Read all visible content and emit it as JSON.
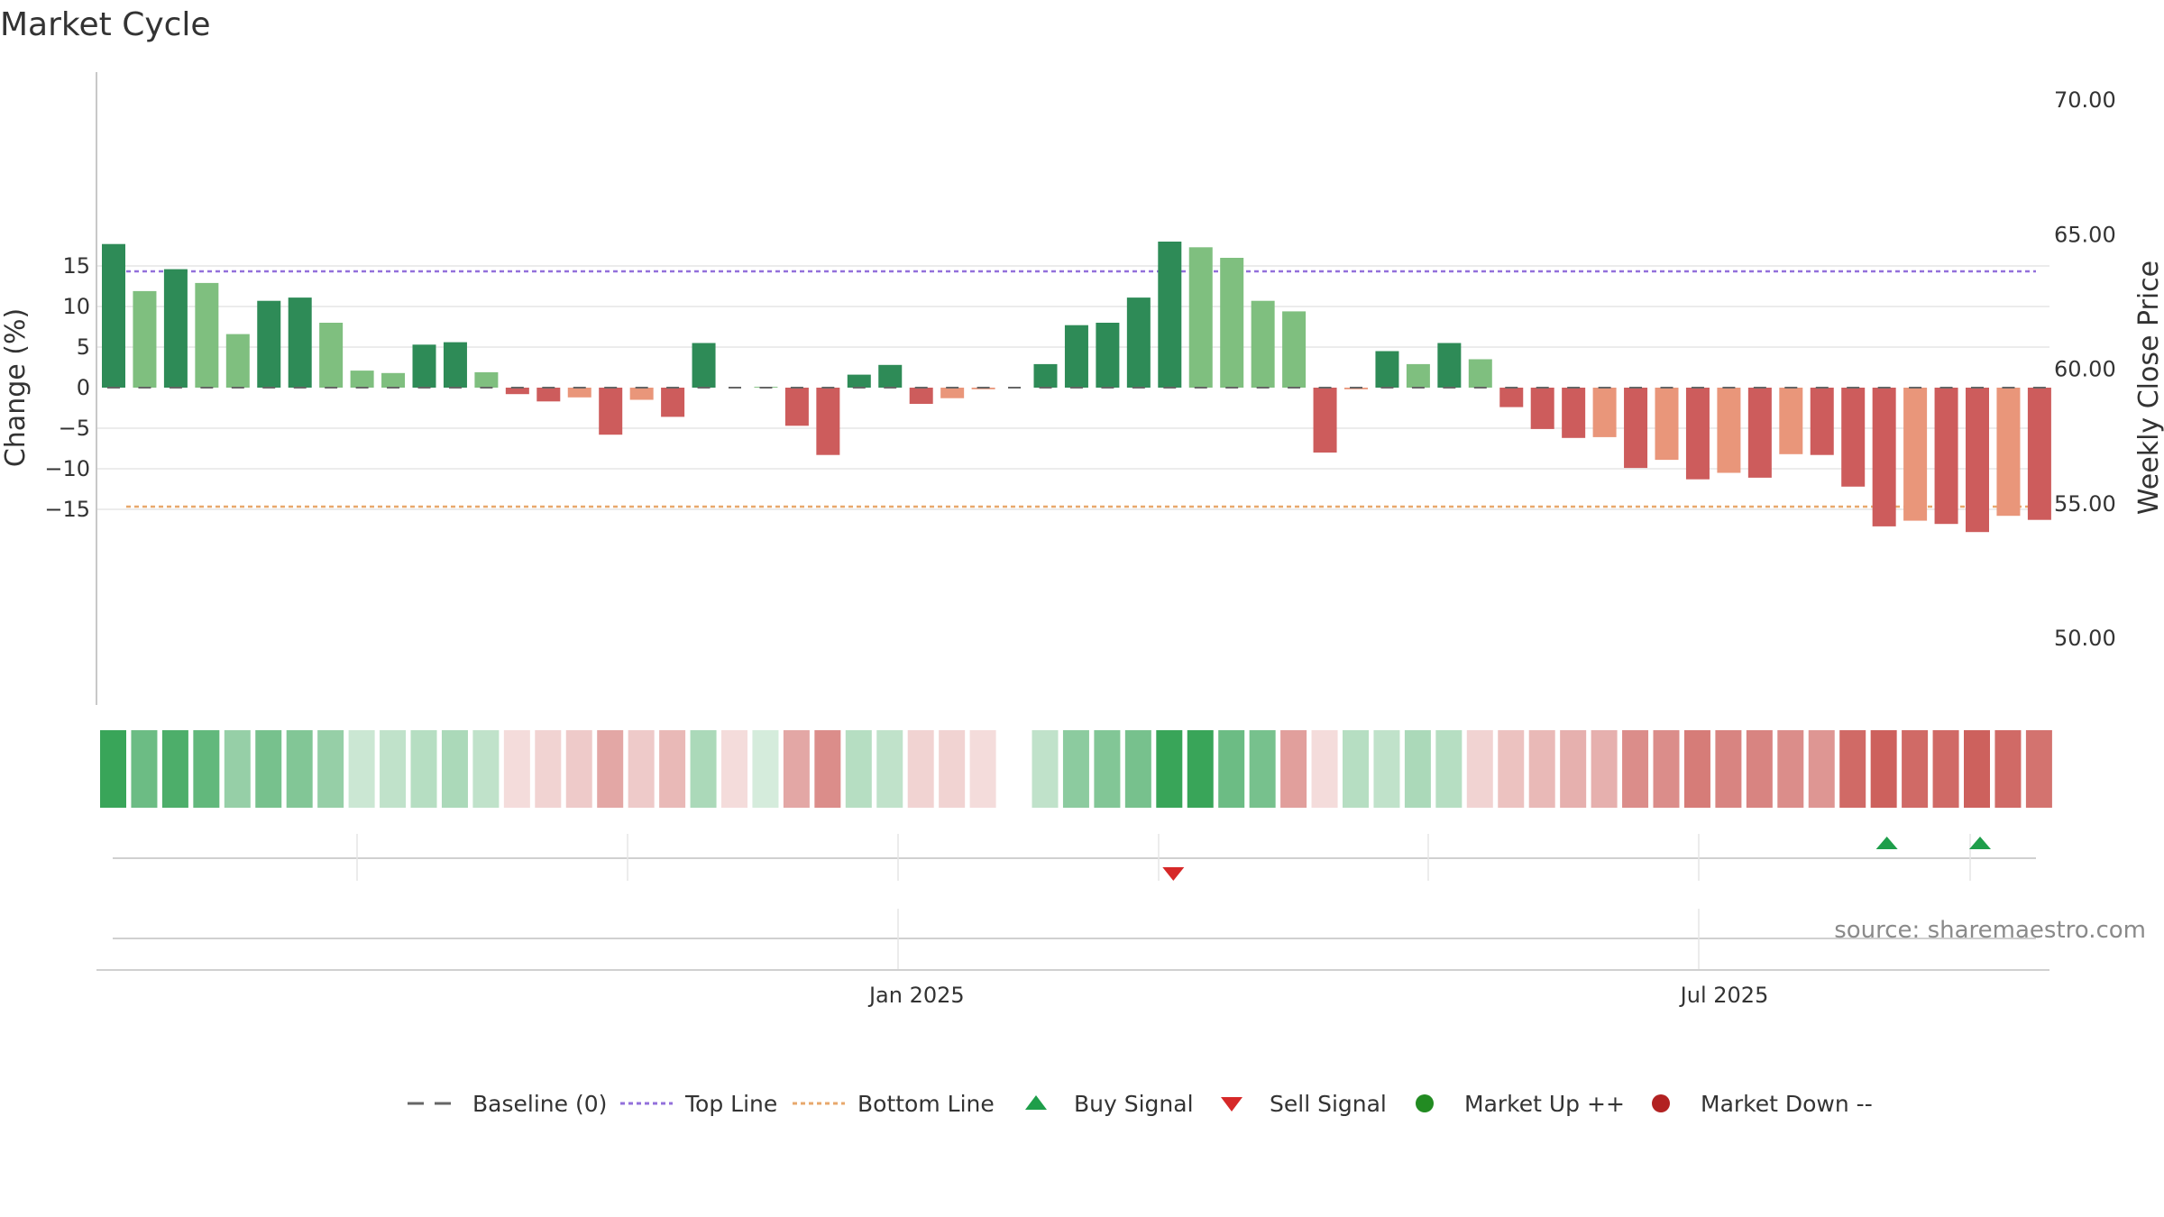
{
  "chart_data": {
    "type": "bar",
    "title": "Market Cycle",
    "ylabel": "Change (%)",
    "y2label": "Weekly Close Price",
    "ylim": [
      -19.5,
      19.5
    ],
    "y2lim": [
      47.0,
      72.5
    ],
    "yticks": [
      15,
      10,
      5,
      0,
      -5,
      -10,
      -15
    ],
    "ytick_labels": [
      "15",
      "10",
      "5",
      "0",
      "−5",
      "−10",
      "−15"
    ],
    "y2ticks": [
      70,
      65,
      60,
      55,
      50
    ],
    "y2tick_labels": [
      "70.00",
      "65.00",
      "60.00",
      "55.00",
      "50.00"
    ],
    "x_labels": [
      {
        "label": "Jan 2025",
        "index": 25.8
      },
      {
        "label": "Jul 2025",
        "index": 51.8
      }
    ],
    "top_line": 17,
    "bottom_line": -17,
    "grid": true,
    "legend_position": "bottom",
    "colors": {
      "up_strong": "#2e8b57",
      "up_light": "#7fbf7f",
      "down_strong": "#cd5c5c",
      "down_light": "#e9967a",
      "top_line": "#9370db",
      "bottom_line": "#e8a86c",
      "baseline": "#666666",
      "buy": "#1e9e4a",
      "sell": "#d62828",
      "market_up": "#228b22",
      "market_down": "#b22222"
    },
    "values": [
      17.7,
      11.9,
      14.6,
      12.9,
      6.6,
      10.7,
      11.1,
      8.0,
      2.1,
      1.8,
      5.3,
      5.6,
      1.9,
      -0.8,
      -1.7,
      -1.2,
      -5.8,
      -1.5,
      -3.6,
      5.5,
      0.0,
      0.1,
      -4.7,
      -8.3,
      1.6,
      2.8,
      -2.0,
      -1.3,
      -0.2,
      0.0,
      2.9,
      7.7,
      8.0,
      11.1,
      18.0,
      17.3,
      16.0,
      10.7,
      9.4,
      -8.0,
      -0.2,
      4.5,
      2.9,
      5.5,
      3.5,
      -2.4,
      -5.1,
      -6.2,
      -6.1,
      -9.9,
      -8.9,
      -11.3,
      -10.5,
      -11.1,
      -8.2,
      -8.3,
      -12.2,
      -17.1,
      -16.4,
      -16.8,
      -17.8,
      -15.8,
      -16.3
    ],
    "shade": [
      "S",
      "L",
      "S",
      "L",
      "L",
      "S",
      "S",
      "L",
      "L",
      "L",
      "S",
      "S",
      "L",
      "S",
      "S",
      "L",
      "S",
      "L",
      "S",
      "S",
      "L",
      "L",
      "S",
      "S",
      "S",
      "S",
      "S",
      "L",
      "L",
      "S",
      "S",
      "S",
      "S",
      "S",
      "S",
      "L",
      "L",
      "L",
      "L",
      "S",
      "L",
      "S",
      "L",
      "S",
      "L",
      "S",
      "S",
      "S",
      "L",
      "S",
      "L",
      "S",
      "L",
      "S",
      "L",
      "S",
      "S",
      "S",
      "L",
      "S",
      "S",
      "L",
      "S"
    ],
    "heat_strip": [
      0.95,
      0.7,
      0.85,
      0.75,
      0.5,
      0.65,
      0.6,
      0.5,
      0.25,
      0.3,
      0.35,
      0.4,
      0.3,
      -0.2,
      -0.25,
      -0.3,
      -0.5,
      -0.3,
      -0.4,
      0.4,
      -0.2,
      0.2,
      -0.5,
      -0.65,
      0.35,
      0.3,
      -0.25,
      -0.25,
      -0.2,
      null,
      0.3,
      0.55,
      0.6,
      0.65,
      0.95,
      0.95,
      0.7,
      0.65,
      -0.55,
      -0.2,
      0.35,
      0.3,
      0.4,
      0.35,
      -0.25,
      -0.35,
      -0.4,
      -0.45,
      -0.45,
      -0.65,
      -0.65,
      -0.75,
      -0.7,
      -0.7,
      -0.65,
      -0.6,
      -0.85,
      -0.9,
      -0.85,
      -0.85,
      -0.9,
      -0.85,
      -0.8
    ],
    "buy_signals": [
      57,
      60
    ],
    "sell_signals": [
      34
    ],
    "legend": [
      {
        "label": "Baseline (0)",
        "symbol": "dash-line",
        "color": "#666666"
      },
      {
        "label": "Top Line",
        "symbol": "dot-line",
        "color": "#9370db"
      },
      {
        "label": "Bottom Line",
        "symbol": "dot-line",
        "color": "#e8a86c"
      },
      {
        "label": "Buy Signal",
        "symbol": "triangle-up",
        "color": "#1e9e4a"
      },
      {
        "label": "Sell Signal",
        "symbol": "triangle-down",
        "color": "#d62828"
      },
      {
        "label": "Market Up ++",
        "symbol": "circle",
        "color": "#228b22"
      },
      {
        "label": "Market Down --",
        "symbol": "circle",
        "color": "#b22222"
      }
    ],
    "source": "source: sharemaestro.com"
  }
}
